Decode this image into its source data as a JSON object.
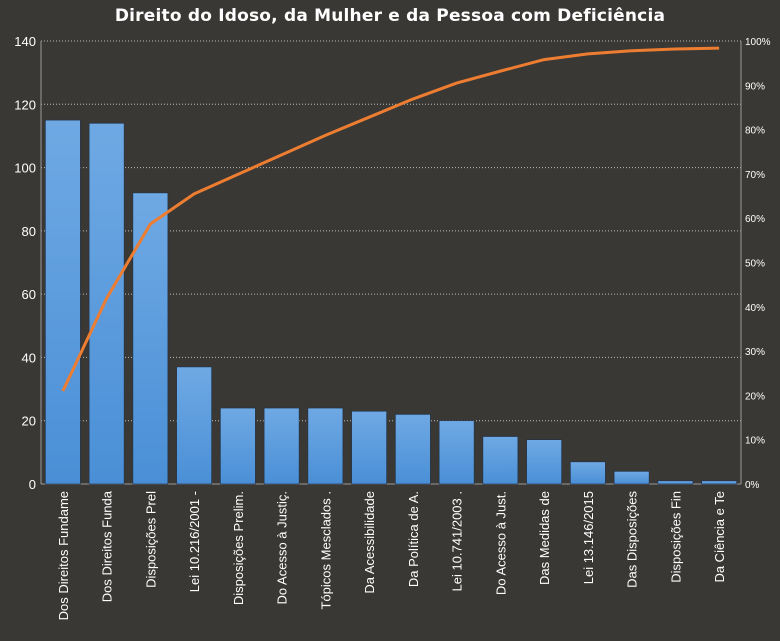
{
  "chart_data": {
    "type": "bar",
    "title": "Direito  do Idoso, da Mulher e da Pessoa com Deficiência",
    "categories": [
      "Dos Direitos Fundame",
      "Dos Direitos Funda",
      "Disposições Prel",
      "Lei 10.216/2001 -",
      "Disposições Prelim.",
      "Do Acesso à Justiç.",
      "Tópicos Mesclados .",
      "Da Acessibilidade",
      "Da Política de A.",
      "Lei 10.741/2003  .",
      "Do Acesso à Just.",
      "Das Medidas de",
      "Lei 13.146/2015",
      "Das Disposições",
      "Disposições Fin",
      "Da Ciência e Te"
    ],
    "series": [
      {
        "type": "bar",
        "axis": "left",
        "values": [
          115,
          114,
          92,
          37,
          24,
          24,
          24,
          23,
          22,
          20,
          15,
          14,
          7,
          4,
          1,
          1
        ]
      },
      {
        "type": "line",
        "axis": "right",
        "values": [
          21.0,
          41.9,
          58.7,
          65.5,
          69.9,
          74.3,
          78.7,
          82.8,
          86.9,
          90.5,
          93.2,
          95.8,
          97.1,
          97.8,
          98.2,
          98.4
        ]
      }
    ],
    "ylim": [
      0,
      140
    ],
    "yticks": [
      0,
      20,
      40,
      60,
      80,
      100,
      120,
      140
    ],
    "y2lim": [
      0,
      100
    ],
    "y2ticks": [
      "0%",
      "10%",
      "20%",
      "30%",
      "40%",
      "50%",
      "60%",
      "70%",
      "80%",
      "90%",
      "100%"
    ],
    "grid": true,
    "legend": "none",
    "colors": {
      "background": "#3a3835",
      "bar": "#4a8fd6",
      "bar_highlight": "#6fa9e4",
      "line": "#ed7d31",
      "grid": "#bdbdbd",
      "text": "#ffffff"
    }
  }
}
